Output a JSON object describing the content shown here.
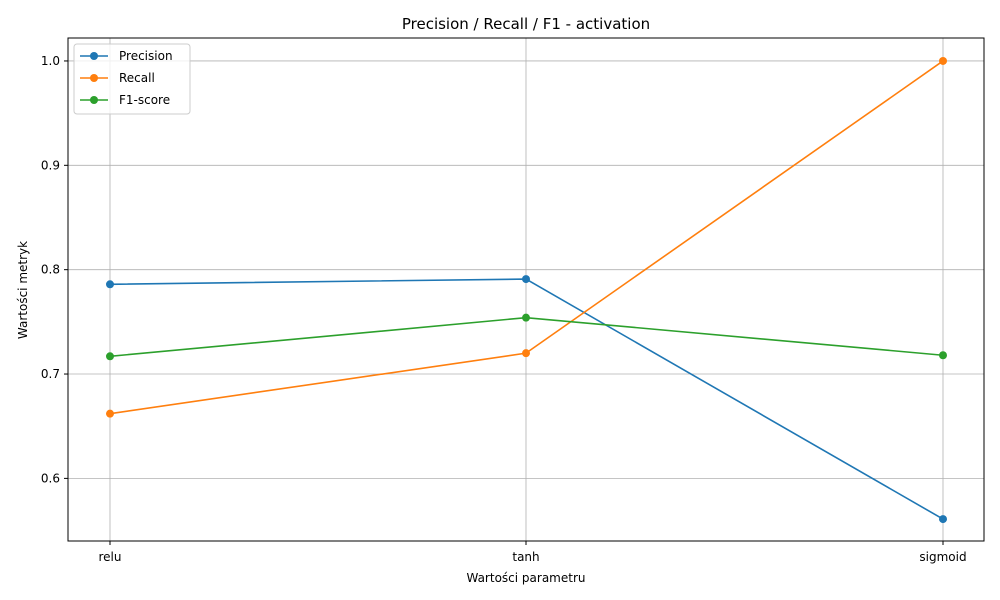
{
  "chart_data": {
    "type": "line",
    "title": "Precision / Recall / F1 - activation",
    "xlabel": "Wartości parametru",
    "ylabel": "Wartości metryk",
    "categories": [
      "relu",
      "tanh",
      "sigmoid"
    ],
    "ylim": [
      0.54,
      1.022
    ],
    "yticks": [
      0.6,
      0.7,
      0.8,
      0.9,
      1.0
    ],
    "ytick_labels": [
      "0.6",
      "0.7",
      "0.8",
      "0.9",
      "1.0"
    ],
    "grid": true,
    "legend_position": "top-left",
    "series": [
      {
        "name": "Precision",
        "color": "#1f77b4",
        "values": [
          0.786,
          0.791,
          0.561
        ]
      },
      {
        "name": "Recall",
        "color": "#ff7f0e",
        "values": [
          0.662,
          0.72,
          1.0
        ]
      },
      {
        "name": "F1-score",
        "color": "#2ca02c",
        "values": [
          0.717,
          0.754,
          0.718
        ]
      }
    ]
  }
}
